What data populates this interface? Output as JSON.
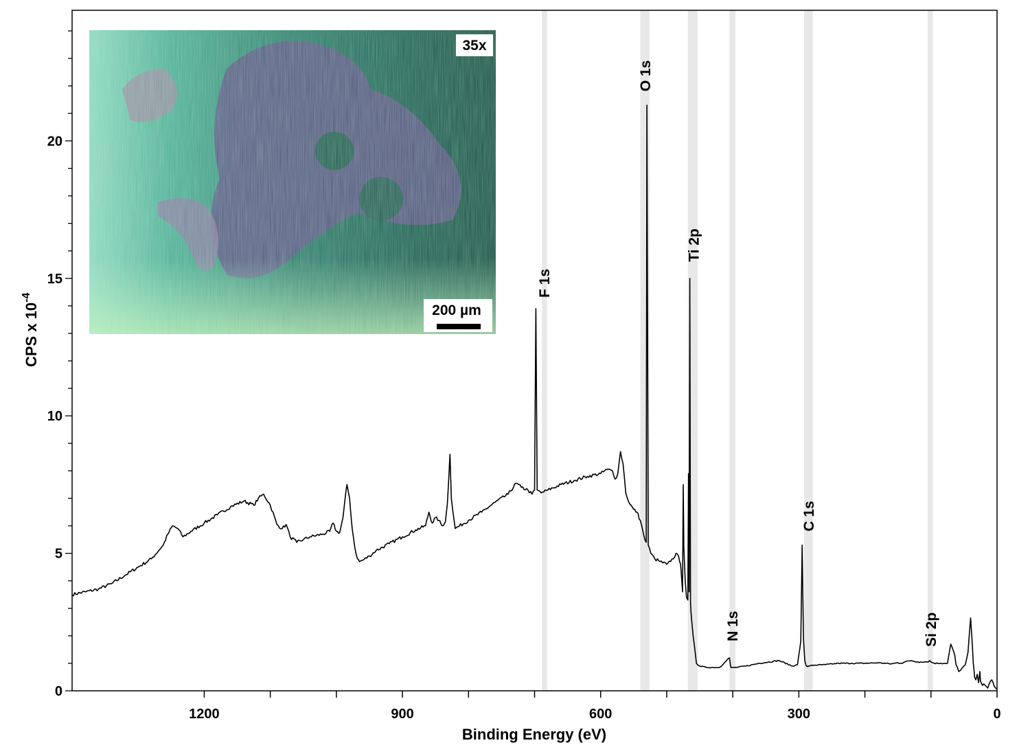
{
  "chart_data": {
    "type": "line",
    "xlabel": "Binding Energy (eV)",
    "ylabel": "CPS x 10",
    "ylabel_exponent": "-4",
    "x_reversed": true,
    "xlim": [
      1400,
      0
    ],
    "ylim": [
      0,
      24.75
    ],
    "x_ticks_labeled": [
      1200,
      900,
      600,
      300,
      0
    ],
    "x_ticks_minor": [
      1100,
      1000,
      800,
      700,
      500,
      400,
      200,
      100
    ],
    "y_ticks_labeled": [
      0,
      5,
      10,
      15,
      20
    ],
    "grid": false,
    "series": [
      {
        "x": [
          1400,
          1380,
          1360,
          1340,
          1320,
          1300,
          1280,
          1262,
          1255,
          1248,
          1240,
          1232,
          1220,
          1200,
          1180,
          1160,
          1140,
          1125,
          1118,
          1110,
          1100,
          1090,
          1082,
          1076,
          1070,
          1060,
          1050,
          1040,
          1020,
          1010,
          1005,
          1000,
          995,
          990,
          984,
          980,
          976,
          972,
          968,
          965,
          960,
          950,
          940,
          920,
          900,
          880,
          865,
          860,
          855,
          850,
          845,
          840,
          835,
          832,
          828,
          826,
          820,
          800,
          780,
          760,
          740,
          728,
          720,
          710,
          704,
          700,
          698,
          696,
          690,
          680,
          660,
          640,
          620,
          600,
          590,
          582,
          578,
          574,
          570,
          566,
          562,
          556,
          550,
          545,
          540,
          536,
          533,
          531,
          530,
          528,
          524,
          518,
          510,
          500,
          494,
          490,
          486,
          482,
          479,
          478,
          476,
          475,
          474,
          472,
          470,
          468,
          467,
          466,
          465,
          464,
          463,
          460,
          455,
          450,
          440,
          420,
          405,
          403,
          400,
          398,
          395,
          380,
          360,
          330,
          310,
          302,
          297,
          295,
          293,
          291,
          289,
          287,
          284,
          280,
          260,
          240,
          220,
          200,
          180,
          160,
          150,
          145,
          140,
          130,
          120,
          110,
          106,
          104,
          102,
          100,
          95,
          90,
          85,
          80,
          75,
          70,
          64,
          62,
          60,
          58,
          55,
          52,
          48,
          44,
          40,
          37,
          36,
          35,
          34,
          32,
          30,
          28,
          26,
          25,
          24,
          22,
          20,
          18,
          16,
          14,
          12,
          10,
          8,
          6,
          4,
          2,
          0
        ],
        "y": [
          3.5,
          3.6,
          3.7,
          3.9,
          4.2,
          4.5,
          4.8,
          5.3,
          5.7,
          6.0,
          5.9,
          5.6,
          5.8,
          6.1,
          6.4,
          6.7,
          6.9,
          6.75,
          7.0,
          7.15,
          6.75,
          6.05,
          5.9,
          6.05,
          5.6,
          5.4,
          5.5,
          5.6,
          5.7,
          5.8,
          6.1,
          5.8,
          5.75,
          6.3,
          7.5,
          7.0,
          5.9,
          5.2,
          4.8,
          4.7,
          4.75,
          4.9,
          5.1,
          5.35,
          5.6,
          5.85,
          6.0,
          6.5,
          6.1,
          6.3,
          6.2,
          6.0,
          6.15,
          6.8,
          8.6,
          7.0,
          5.9,
          6.2,
          6.5,
          6.85,
          7.15,
          7.55,
          7.4,
          7.3,
          7.15,
          7.3,
          13.9,
          7.3,
          7.2,
          7.3,
          7.5,
          7.65,
          7.8,
          7.9,
          8.05,
          8.0,
          7.7,
          7.9,
          8.7,
          8.25,
          7.2,
          6.8,
          6.6,
          6.5,
          6.2,
          5.8,
          5.5,
          5.4,
          21.3,
          5.3,
          5.0,
          4.8,
          4.7,
          4.6,
          4.7,
          4.8,
          5.0,
          4.9,
          4.6,
          4.3,
          3.6,
          7.5,
          5.2,
          4.0,
          3.4,
          3.3,
          7.9,
          3.6,
          15.0,
          3.2,
          2.8,
          2.0,
          1.0,
          0.9,
          0.85,
          0.85,
          1.2,
          0.85,
          0.85,
          0.85,
          0.85,
          0.9,
          1.0,
          1.1,
          0.9,
          0.95,
          1.8,
          5.3,
          1.9,
          1.1,
          0.92,
          0.88,
          0.9,
          0.93,
          0.95,
          1.0,
          1.0,
          1.0,
          1.02,
          0.98,
          1.02,
          1.0,
          1.05,
          1.1,
          1.05,
          1.05,
          1.05,
          1.05,
          1.1,
          1.05,
          1.0,
          1.0,
          1.0,
          1.0,
          1.0,
          1.7,
          1.3,
          0.95,
          0.85,
          0.7,
          0.75,
          0.85,
          0.95,
          1.4,
          2.65,
          1.5,
          1.0,
          0.8,
          0.5,
          0.4,
          0.6,
          0.3,
          0.7,
          0.35,
          0.3,
          0.2,
          0.25,
          0.2,
          0.15,
          0.1,
          0.25,
          0.35,
          0.4,
          0.3,
          0.15,
          0.1,
          0.05
        ]
      }
    ],
    "annotations": [
      {
        "text": "F 1s",
        "x": 685,
        "y": 14.0
      },
      {
        "text": "O 1s",
        "x": 532,
        "y": 21.5
      },
      {
        "text": "Ti 2p",
        "x": 459,
        "y": 15.3
      },
      {
        "text": "N 1s",
        "x": 400,
        "y": 1.5
      },
      {
        "text": "C 1s",
        "x": 285,
        "y": 5.5
      },
      {
        "text": "Si 2p",
        "x": 100,
        "y": 1.3
      }
    ],
    "highlight_bands": [
      {
        "x_from": 689,
        "x_to": 681
      },
      {
        "x_from": 540,
        "x_to": 526
      },
      {
        "x_from": 468,
        "x_to": 453
      },
      {
        "x_from": 405,
        "x_to": 396
      },
      {
        "x_from": 292,
        "x_to": 279
      },
      {
        "x_from": 105,
        "x_to": 97
      }
    ],
    "inset": {
      "magnification": "35x",
      "scale_bar": "200 µm"
    }
  }
}
